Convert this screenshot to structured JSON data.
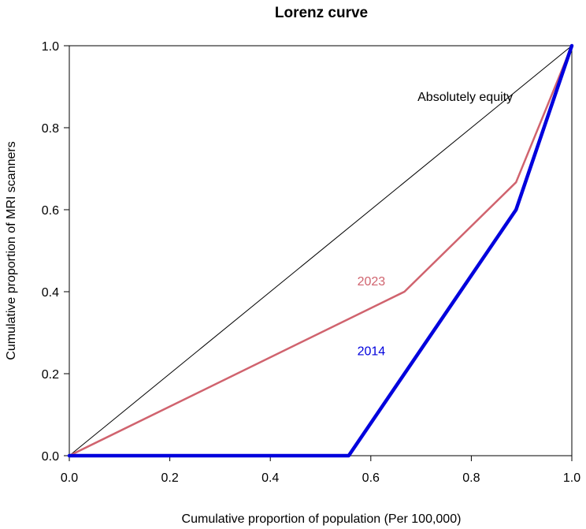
{
  "chart_data": {
    "type": "line",
    "title": "Lorenz curve",
    "xlabel": "Cumulative proportion of population (Per 100,000)",
    "ylabel": "Cumulative proportion of MRI scanners",
    "xlim": [
      0,
      1
    ],
    "ylim": [
      0,
      1
    ],
    "x_ticks": [
      "0.0",
      "0.2",
      "0.4",
      "0.6",
      "0.8",
      "1.0"
    ],
    "y_ticks": [
      "0.0",
      "0.2",
      "0.4",
      "0.6",
      "0.8",
      "1.0"
    ],
    "grid": false,
    "series": [
      {
        "name": "Absolutely equity",
        "color": "#000000",
        "x": [
          0,
          1
        ],
        "y": [
          0,
          1
        ]
      },
      {
        "name": "2023",
        "color": "#d0636e",
        "x": [
          0,
          0.667,
          0.889,
          1.0
        ],
        "y": [
          0,
          0.4,
          0.667,
          1.0
        ]
      },
      {
        "name": "2014",
        "color": "#0000dd",
        "x": [
          0,
          0.556,
          0.889,
          1.0
        ],
        "y": [
          0,
          0,
          0.6,
          1.0
        ]
      }
    ],
    "annotations": [
      {
        "text": "Absolutely equity",
        "x": 0.693,
        "y": 0.865,
        "color": "#000000"
      },
      {
        "text": "2023",
        "x": 0.573,
        "y": 0.415,
        "color": "#d0636e"
      },
      {
        "text": "2014",
        "x": 0.573,
        "y": 0.245,
        "color": "#0000dd"
      }
    ]
  }
}
